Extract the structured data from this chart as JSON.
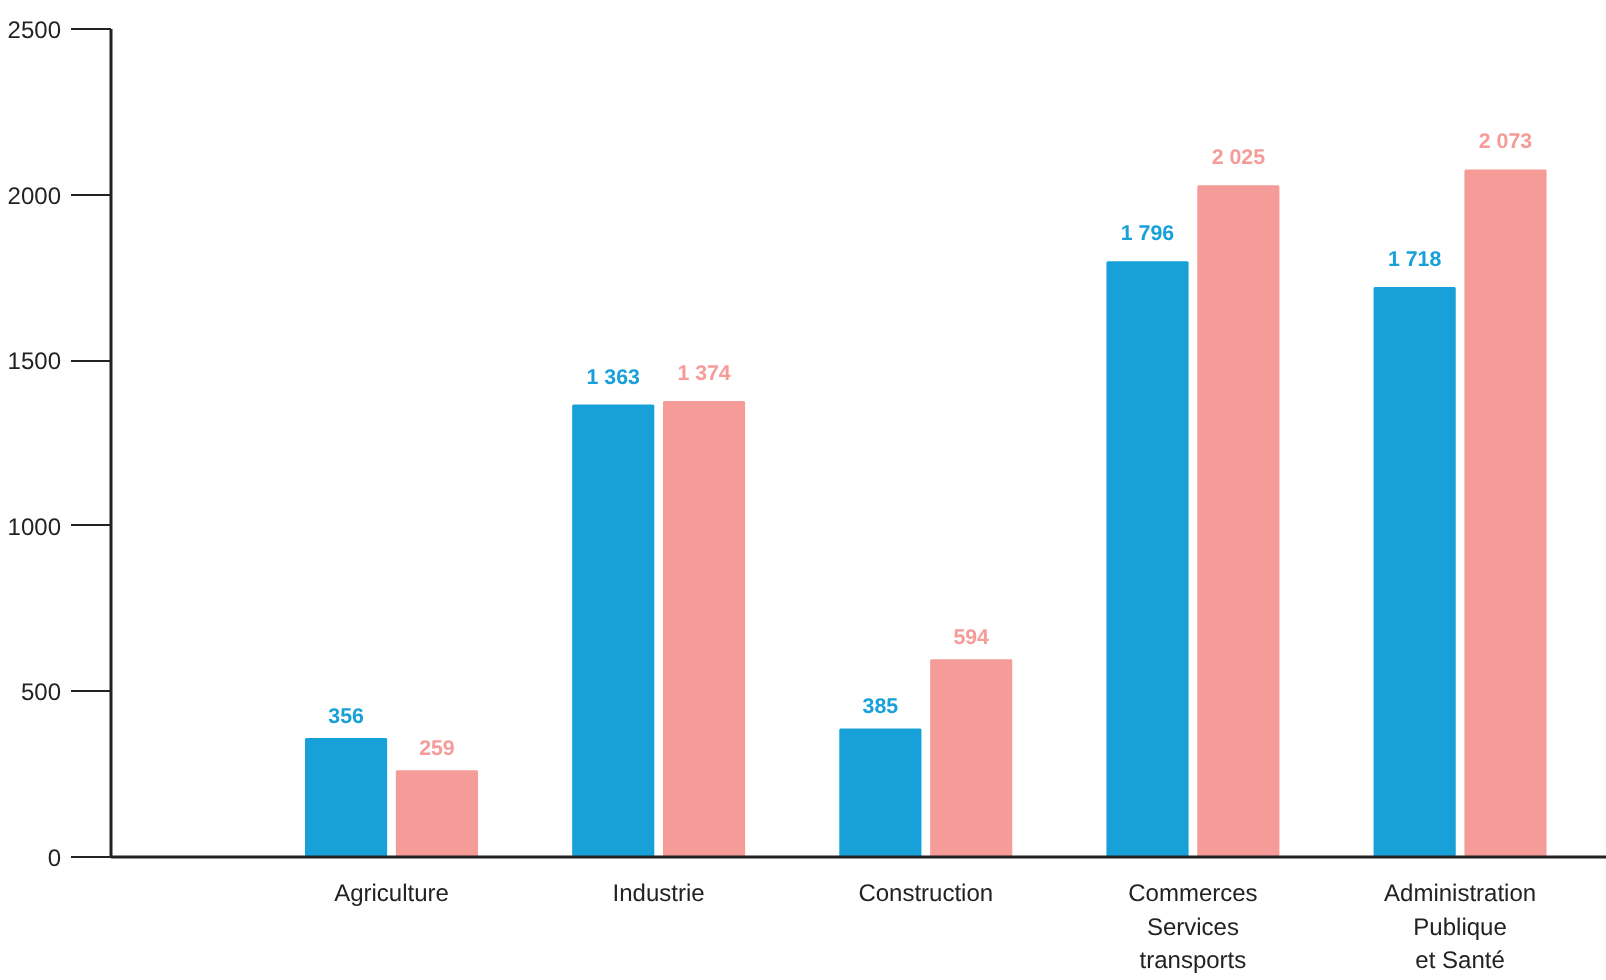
{
  "chart_data": {
    "type": "bar",
    "categories": [
      "Agriculture",
      "Industrie",
      "Construction",
      "Commerces\nServices\ntransports",
      "Administration\nPublique\net Santé"
    ],
    "series": [
      {
        "color": "#17a1d8",
        "values": [
          356,
          1363,
          385,
          1796,
          1718
        ],
        "value_labels": [
          "356",
          "1 363",
          "385",
          "1 796",
          "1 718"
        ]
      },
      {
        "color": "#f59b98",
        "values": [
          259,
          1374,
          594,
          2025,
          2073
        ],
        "value_labels": [
          "259",
          "1 374",
          "594",
          "2 025",
          "2 073"
        ]
      }
    ],
    "ylim": [
      0,
      2500
    ],
    "yticks": [
      0,
      500,
      1000,
      1500,
      2000,
      2500
    ],
    "grid": false
  }
}
